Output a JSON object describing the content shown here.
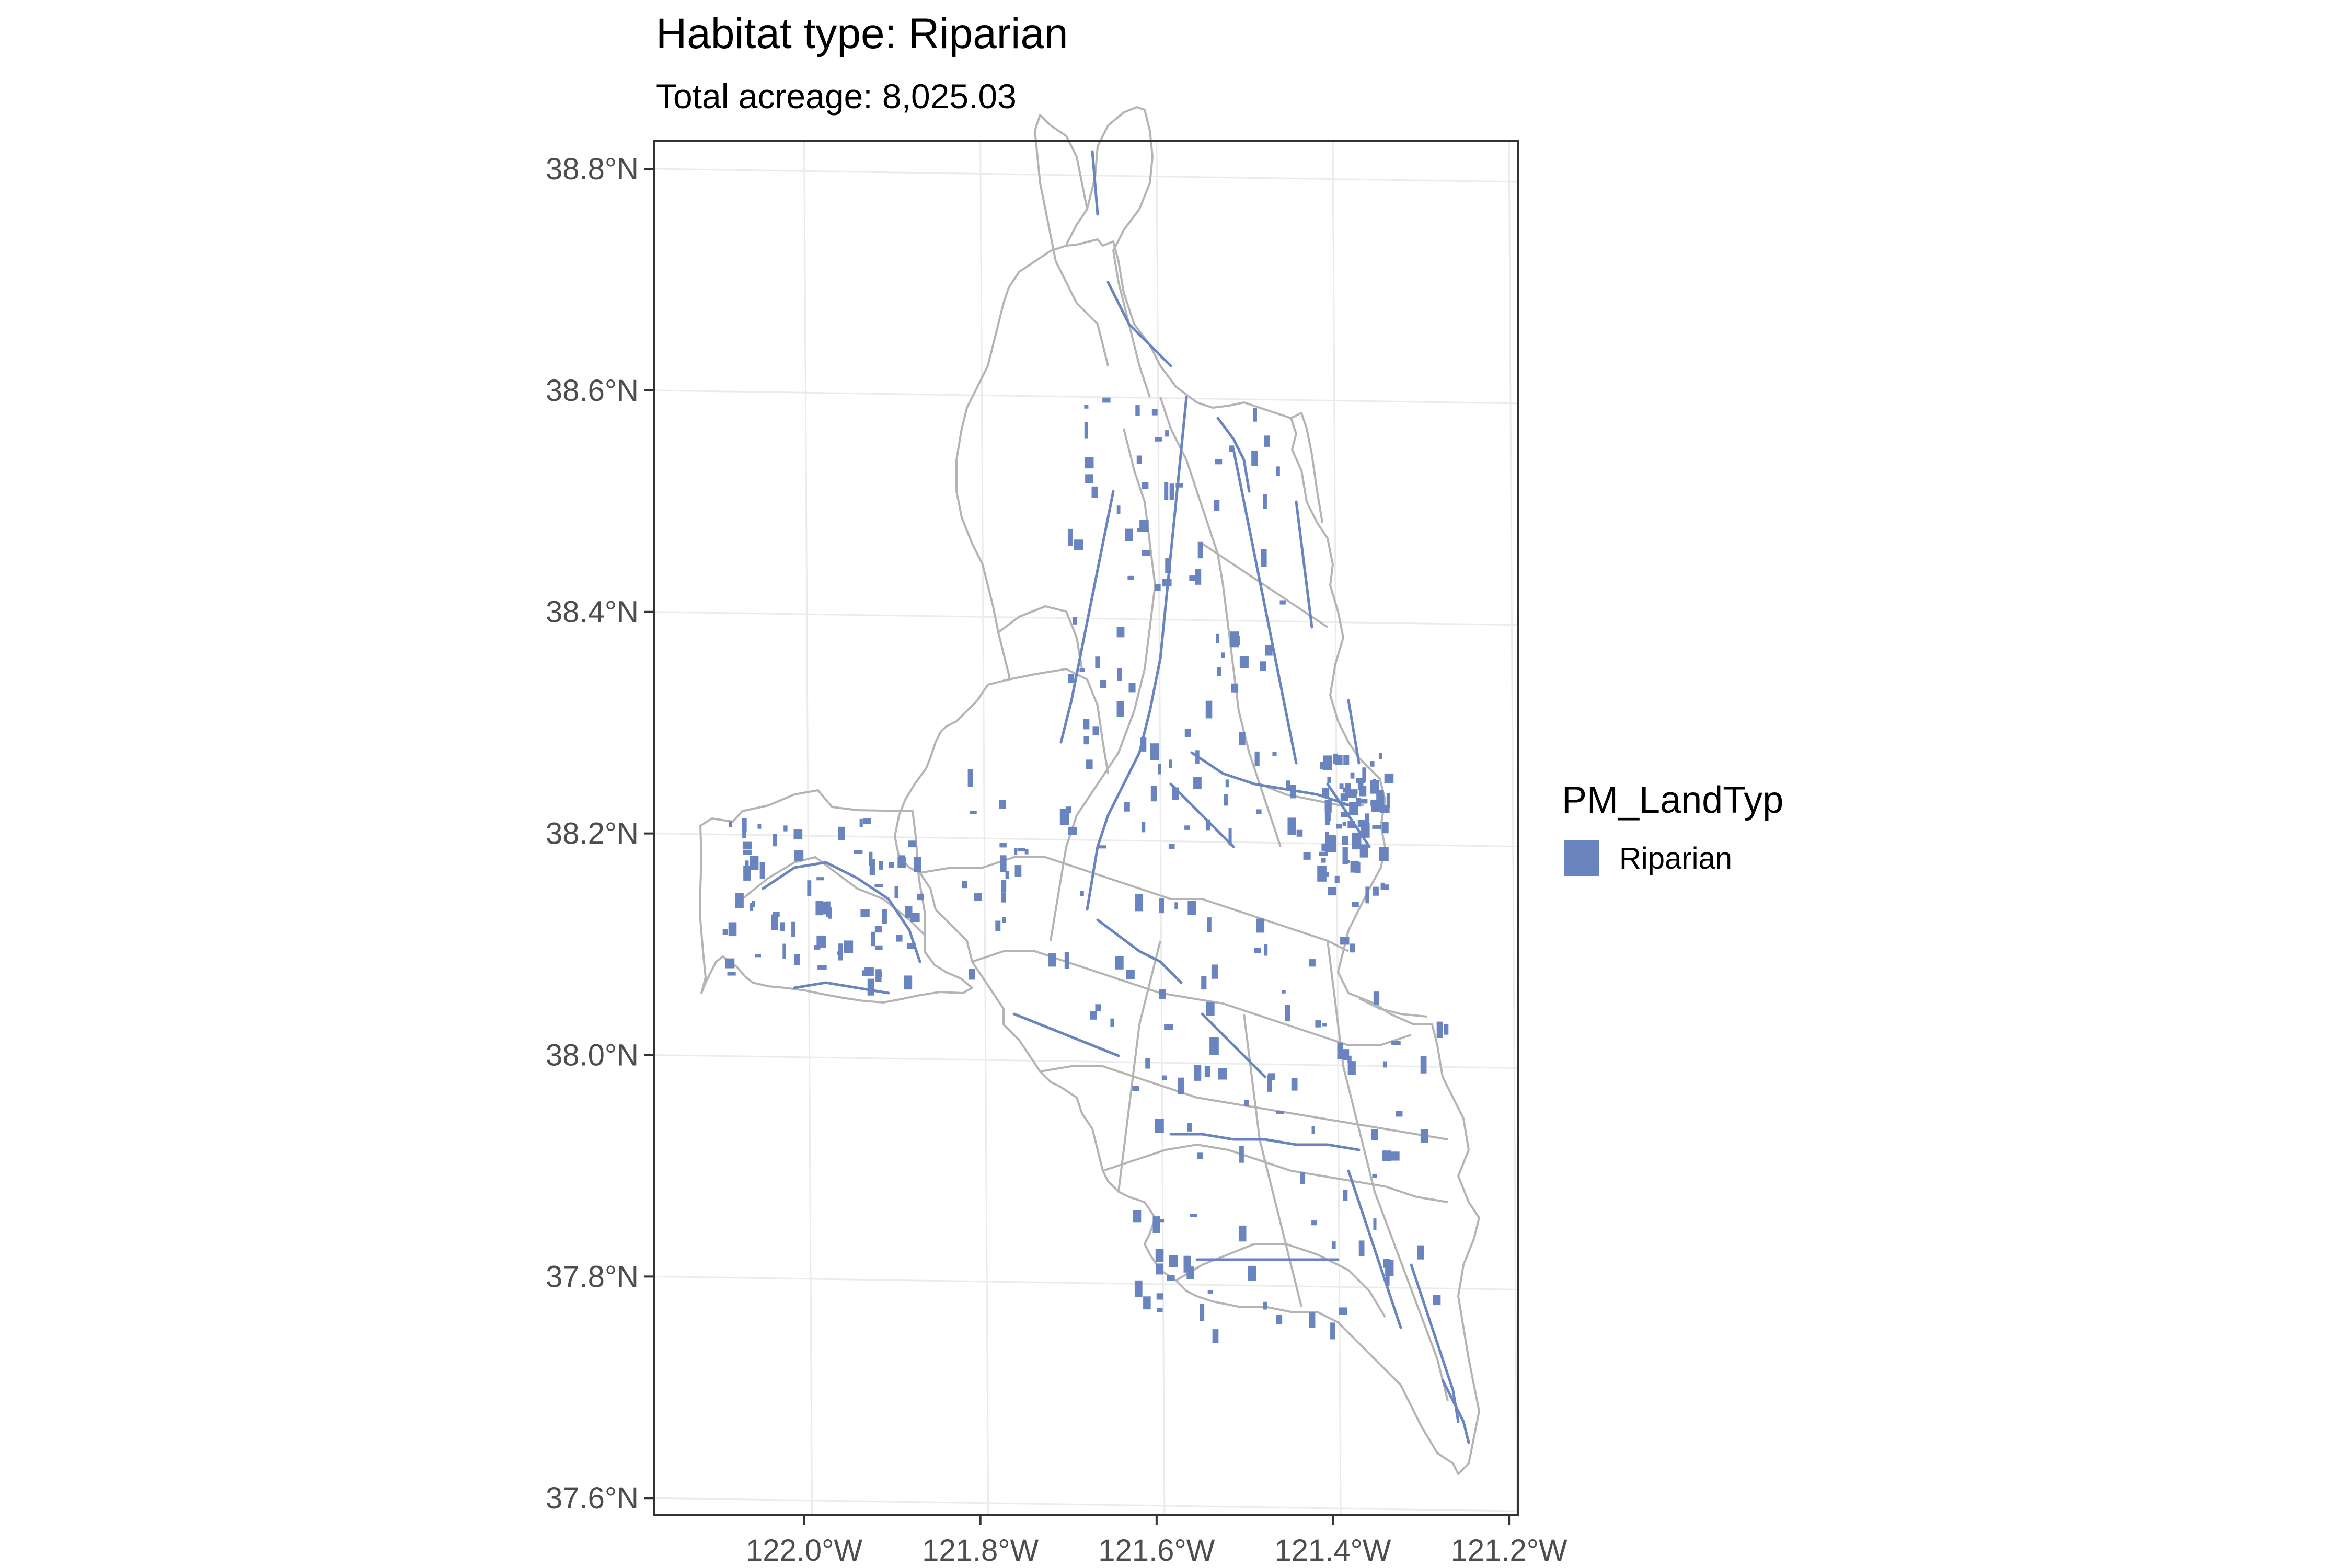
{
  "chart_data": {
    "type": "map",
    "title": "Habitat type: Riparian",
    "subtitle": "Total acreage: 8,025.03",
    "x_ticks": [
      {
        "value": -122.0,
        "label": "122.0°W"
      },
      {
        "value": -121.8,
        "label": "121.8°W"
      },
      {
        "value": -121.6,
        "label": "121.6°W"
      },
      {
        "value": -121.4,
        "label": "121.4°W"
      },
      {
        "value": -121.2,
        "label": "121.2°W"
      }
    ],
    "y_ticks": [
      {
        "value": 38.8,
        "label": "38.8°N"
      },
      {
        "value": 38.6,
        "label": "38.6°N"
      },
      {
        "value": 38.4,
        "label": "38.4°N"
      },
      {
        "value": 38.2,
        "label": "38.2°N"
      },
      {
        "value": 38.0,
        "label": "38.0°N"
      },
      {
        "value": 37.8,
        "label": "37.8°N"
      },
      {
        "value": 37.6,
        "label": "37.6°N"
      }
    ],
    "xlim": [
      -122.17,
      -121.19
    ],
    "ylim": [
      37.585,
      38.825
    ],
    "grid": true,
    "legend": {
      "title": "PM_LandTyp",
      "position": "right",
      "entries": [
        {
          "label": "Riparian",
          "color": "#6a84c0"
        }
      ]
    },
    "colors": {
      "boundary": "#b4b4b4",
      "riparian": "#6a84c0",
      "grid": "#ebebeb",
      "panel_border": "#333333"
    }
  }
}
